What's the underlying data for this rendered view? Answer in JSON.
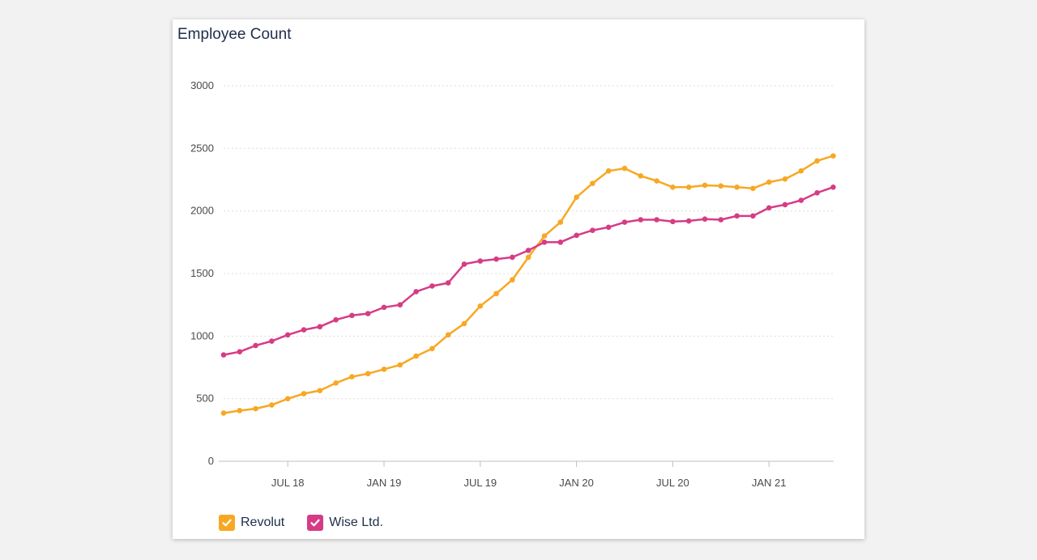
{
  "chart_data": {
    "type": "line",
    "title": "Employee Count",
    "xlabel": "",
    "ylabel": "",
    "ylim": [
      0,
      3000
    ],
    "y_ticks": [
      0,
      500,
      1000,
      1500,
      2000,
      2500,
      3000
    ],
    "x_ticks": [
      {
        "label": "JUL 18",
        "date": "2018-07"
      },
      {
        "label": "JAN 19",
        "date": "2019-01"
      },
      {
        "label": "JUL 19",
        "date": "2019-07"
      },
      {
        "label": "JAN 20",
        "date": "2020-01"
      },
      {
        "label": "JUL 20",
        "date": "2020-07"
      },
      {
        "label": "JAN 21",
        "date": "2021-01"
      }
    ],
    "x": [
      "2018-03",
      "2018-04",
      "2018-05",
      "2018-06",
      "2018-07",
      "2018-08",
      "2018-09",
      "2018-10",
      "2018-11",
      "2018-12",
      "2019-01",
      "2019-02",
      "2019-03",
      "2019-04",
      "2019-05",
      "2019-06",
      "2019-07",
      "2019-08",
      "2019-09",
      "2019-10",
      "2019-11",
      "2019-12",
      "2020-01",
      "2020-02",
      "2020-03",
      "2020-04",
      "2020-05",
      "2020-06",
      "2020-07",
      "2020-08",
      "2020-09",
      "2020-10",
      "2020-11",
      "2020-12",
      "2021-01",
      "2021-02",
      "2021-03",
      "2021-04",
      "2021-05"
    ],
    "grid": true,
    "legend_position": "bottom-left",
    "series": [
      {
        "name": "Revolut",
        "color": "#f7a823",
        "values": [
          385,
          405,
          420,
          450,
          500,
          540,
          565,
          625,
          675,
          700,
          735,
          770,
          840,
          900,
          1010,
          1100,
          1240,
          1340,
          1450,
          1630,
          1800,
          1910,
          2110,
          2220,
          2320,
          2340,
          2280,
          2240,
          2190,
          2190,
          2205,
          2200,
          2190,
          2180,
          2230,
          2255,
          2320,
          2400,
          2440
        ]
      },
      {
        "name": "Wise Ltd.",
        "color": "#d63c86",
        "values": [
          850,
          875,
          925,
          960,
          1010,
          1050,
          1075,
          1130,
          1165,
          1180,
          1230,
          1250,
          1355,
          1400,
          1425,
          1575,
          1600,
          1615,
          1630,
          1685,
          1750,
          1750,
          1805,
          1845,
          1870,
          1910,
          1930,
          1930,
          1915,
          1920,
          1935,
          1930,
          1960,
          1960,
          2025,
          2050,
          2085,
          2145,
          2190
        ]
      }
    ]
  }
}
